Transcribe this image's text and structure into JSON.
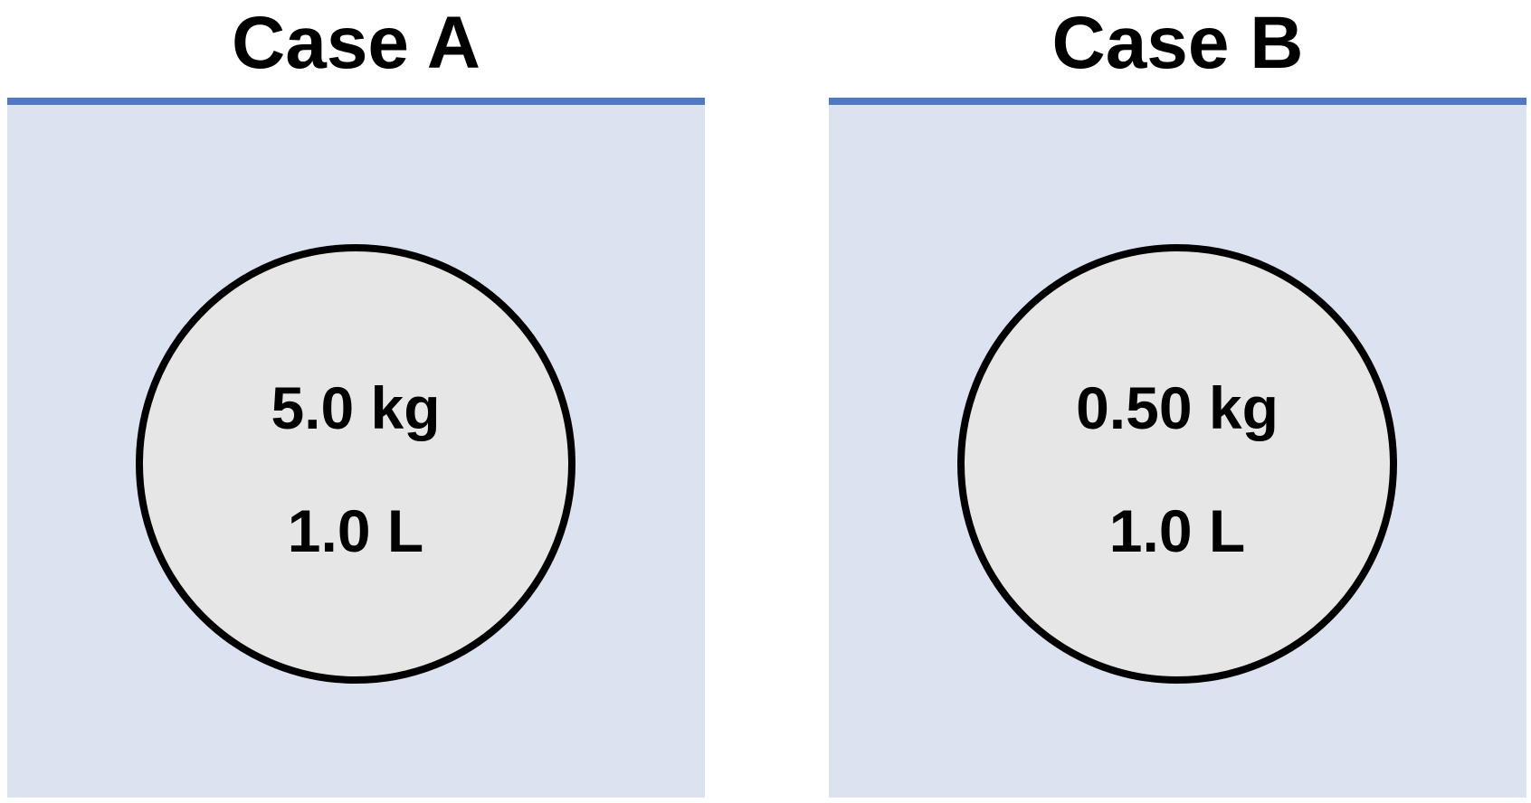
{
  "colors": {
    "water": "#dce3f0",
    "water_surface": "#4f79c2",
    "sphere_fill": "#e6e6e6",
    "sphere_outline": "#000000"
  },
  "cases": [
    {
      "title": "Case A",
      "mass": "5.0 kg",
      "volume": "1.0 L"
    },
    {
      "title": "Case B",
      "mass": "0.50 kg",
      "volume": "1.0 L"
    }
  ]
}
